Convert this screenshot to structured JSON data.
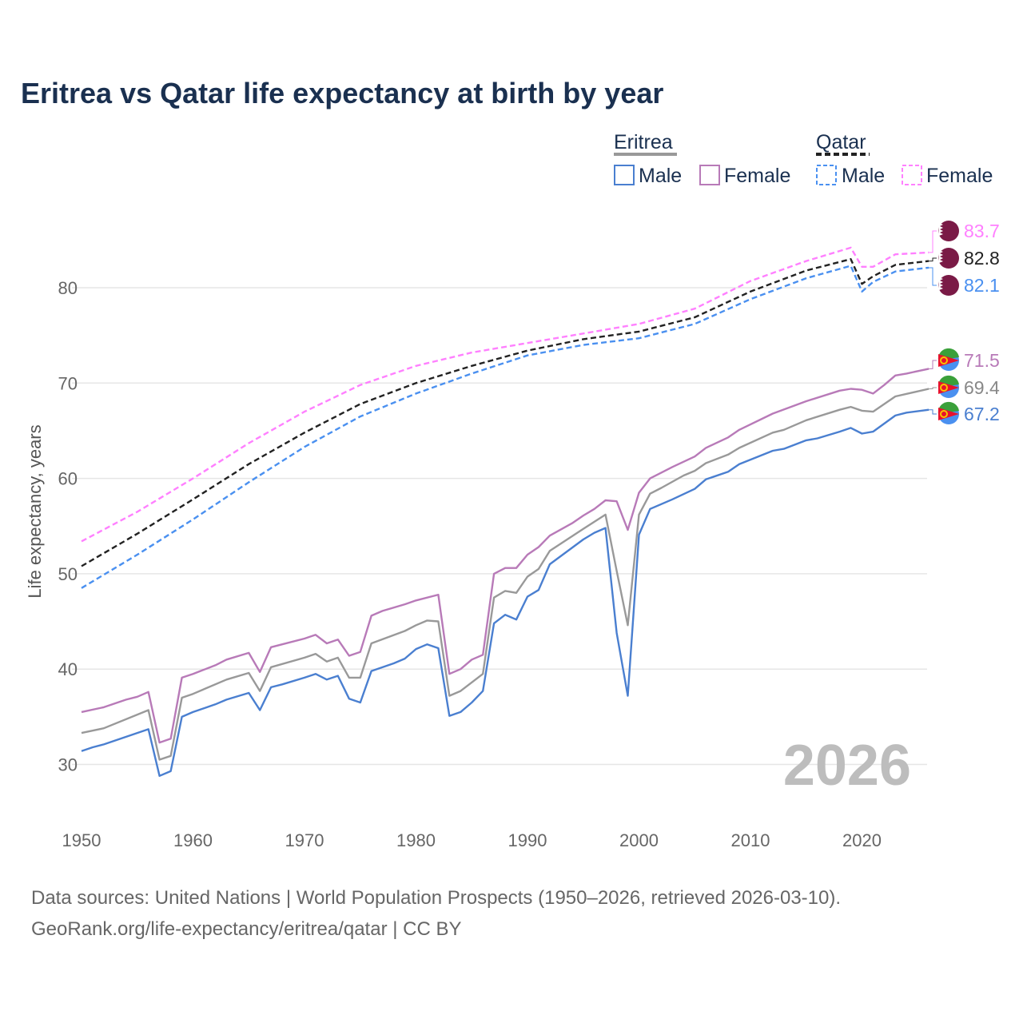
{
  "chart_data": {
    "type": "line",
    "title": "Eritrea vs Qatar life expectancy at birth by year",
    "xlabel": "",
    "ylabel": "Life expectancy, years",
    "xlim": [
      1950,
      2026
    ],
    "ylim": [
      25,
      88
    ],
    "xticks": [
      "1950",
      "1960",
      "1970",
      "1980",
      "1990",
      "2000",
      "2010",
      "2020"
    ],
    "yticks": [
      "30",
      "40",
      "50",
      "60",
      "70",
      "80"
    ],
    "grid": true,
    "year_watermark": "2026",
    "legend": {
      "placement": "top-right",
      "groups": [
        {
          "country": "Eritrea",
          "items": [
            "Male",
            "Female"
          ]
        },
        {
          "country": "Qatar",
          "items": [
            "Male",
            "Female"
          ]
        }
      ]
    },
    "series": [
      {
        "name": "Qatar Female",
        "country": "Qatar",
        "color": "#ff80ff",
        "dashed": true,
        "end_label": "83.7",
        "points": [
          [
            1950,
            53.4
          ],
          [
            1955,
            56.5
          ],
          [
            1960,
            60.0
          ],
          [
            1965,
            63.7
          ],
          [
            1970,
            67.0
          ],
          [
            1975,
            69.8
          ],
          [
            1980,
            71.8
          ],
          [
            1985,
            73.2
          ],
          [
            1990,
            74.2
          ],
          [
            1995,
            75.2
          ],
          [
            2000,
            76.2
          ],
          [
            2005,
            77.8
          ],
          [
            2010,
            80.7
          ],
          [
            2015,
            82.8
          ],
          [
            2019,
            84.2
          ],
          [
            2020,
            82.2
          ],
          [
            2021,
            82.2
          ],
          [
            2023,
            83.5
          ],
          [
            2026,
            83.7
          ]
        ]
      },
      {
        "name": "Qatar Total",
        "country": "Qatar",
        "color": "#222222",
        "dashed": true,
        "end_label": "82.8",
        "points": [
          [
            1950,
            50.8
          ],
          [
            1955,
            54.2
          ],
          [
            1960,
            57.8
          ],
          [
            1965,
            61.5
          ],
          [
            1970,
            64.8
          ],
          [
            1975,
            67.8
          ],
          [
            1980,
            70.0
          ],
          [
            1985,
            71.8
          ],
          [
            1990,
            73.4
          ],
          [
            1995,
            74.6
          ],
          [
            2000,
            75.4
          ],
          [
            2005,
            76.9
          ],
          [
            2010,
            79.6
          ],
          [
            2015,
            81.8
          ],
          [
            2019,
            83.0
          ],
          [
            2020,
            80.4
          ],
          [
            2021,
            81.2
          ],
          [
            2023,
            82.4
          ],
          [
            2026,
            82.8
          ]
        ]
      },
      {
        "name": "Qatar Male",
        "country": "Qatar",
        "color": "#4a90f0",
        "dashed": true,
        "end_label": "82.1",
        "points": [
          [
            1950,
            48.5
          ],
          [
            1955,
            52.0
          ],
          [
            1960,
            55.7
          ],
          [
            1965,
            59.6
          ],
          [
            1970,
            63.3
          ],
          [
            1975,
            66.5
          ],
          [
            1980,
            68.9
          ],
          [
            1985,
            71.0
          ],
          [
            1990,
            72.9
          ],
          [
            1995,
            74.0
          ],
          [
            2000,
            74.7
          ],
          [
            2005,
            76.2
          ],
          [
            2010,
            78.8
          ],
          [
            2015,
            81.0
          ],
          [
            2019,
            82.3
          ],
          [
            2020,
            79.6
          ],
          [
            2021,
            80.6
          ],
          [
            2023,
            81.7
          ],
          [
            2026,
            82.1
          ]
        ]
      },
      {
        "name": "Eritrea Female",
        "country": "Eritrea",
        "color": "#b87ab8",
        "dashed": false,
        "end_label": "71.5",
        "points": [
          [
            1950,
            35.5
          ],
          [
            1952,
            36.0
          ],
          [
            1954,
            36.8
          ],
          [
            1955,
            37.1
          ],
          [
            1956,
            37.6
          ],
          [
            1957,
            32.3
          ],
          [
            1958,
            32.7
          ],
          [
            1959,
            39.1
          ],
          [
            1960,
            39.5
          ],
          [
            1962,
            40.4
          ],
          [
            1963,
            41.0
          ],
          [
            1965,
            41.7
          ],
          [
            1966,
            39.7
          ],
          [
            1967,
            42.3
          ],
          [
            1968,
            42.6
          ],
          [
            1970,
            43.2
          ],
          [
            1971,
            43.6
          ],
          [
            1972,
            42.7
          ],
          [
            1973,
            43.1
          ],
          [
            1974,
            41.4
          ],
          [
            1975,
            41.8
          ],
          [
            1976,
            45.6
          ],
          [
            1977,
            46.1
          ],
          [
            1979,
            46.8
          ],
          [
            1980,
            47.2
          ],
          [
            1982,
            47.8
          ],
          [
            1983,
            39.5
          ],
          [
            1984,
            40.0
          ],
          [
            1985,
            41.0
          ],
          [
            1986,
            41.5
          ],
          [
            1987,
            50.0
          ],
          [
            1988,
            50.6
          ],
          [
            1989,
            50.6
          ],
          [
            1990,
            52.0
          ],
          [
            1991,
            52.8
          ],
          [
            1992,
            54.0
          ],
          [
            1994,
            55.3
          ],
          [
            1995,
            56.1
          ],
          [
            1996,
            56.8
          ],
          [
            1997,
            57.7
          ],
          [
            1998,
            57.6
          ],
          [
            1999,
            54.6
          ],
          [
            2000,
            58.5
          ],
          [
            2001,
            60.0
          ],
          [
            2002,
            60.6
          ],
          [
            2003,
            61.2
          ],
          [
            2005,
            62.3
          ],
          [
            2006,
            63.2
          ],
          [
            2008,
            64.3
          ],
          [
            2009,
            65.1
          ],
          [
            2012,
            66.8
          ],
          [
            2015,
            68.1
          ],
          [
            2018,
            69.2
          ],
          [
            2019,
            69.4
          ],
          [
            2020,
            69.3
          ],
          [
            2021,
            68.9
          ],
          [
            2022,
            69.8
          ],
          [
            2023,
            70.8
          ],
          [
            2024,
            71.0
          ],
          [
            2026,
            71.5
          ]
        ]
      },
      {
        "name": "Eritrea Total",
        "country": "Eritrea",
        "color": "#999999",
        "dashed": false,
        "end_label": "69.4",
        "points": [
          [
            1950,
            33.3
          ],
          [
            1952,
            33.8
          ],
          [
            1956,
            35.7
          ],
          [
            1957,
            30.5
          ],
          [
            1958,
            30.9
          ],
          [
            1959,
            37.0
          ],
          [
            1960,
            37.4
          ],
          [
            1963,
            38.9
          ],
          [
            1965,
            39.6
          ],
          [
            1966,
            37.7
          ],
          [
            1967,
            40.2
          ],
          [
            1970,
            41.2
          ],
          [
            1971,
            41.6
          ],
          [
            1972,
            40.8
          ],
          [
            1973,
            41.2
          ],
          [
            1974,
            39.1
          ],
          [
            1975,
            39.1
          ],
          [
            1976,
            42.7
          ],
          [
            1979,
            44.0
          ],
          [
            1980,
            44.6
          ],
          [
            1981,
            45.1
          ],
          [
            1982,
            45.0
          ],
          [
            1983,
            37.2
          ],
          [
            1984,
            37.7
          ],
          [
            1986,
            39.5
          ],
          [
            1987,
            47.5
          ],
          [
            1988,
            48.2
          ],
          [
            1989,
            48.0
          ],
          [
            1990,
            49.7
          ],
          [
            1991,
            50.5
          ],
          [
            1992,
            52.4
          ],
          [
            1995,
            54.7
          ],
          [
            1997,
            56.2
          ],
          [
            1998,
            50.3
          ],
          [
            1999,
            44.6
          ],
          [
            2000,
            56.2
          ],
          [
            2001,
            58.4
          ],
          [
            2002,
            59.0
          ],
          [
            2004,
            60.3
          ],
          [
            2005,
            60.8
          ],
          [
            2006,
            61.6
          ],
          [
            2008,
            62.5
          ],
          [
            2009,
            63.2
          ],
          [
            2012,
            64.8
          ],
          [
            2013,
            65.1
          ],
          [
            2015,
            66.1
          ],
          [
            2018,
            67.2
          ],
          [
            2019,
            67.5
          ],
          [
            2020,
            67.1
          ],
          [
            2021,
            67.0
          ],
          [
            2023,
            68.6
          ],
          [
            2026,
            69.4
          ]
        ]
      },
      {
        "name": "Eritrea Male",
        "country": "Eritrea",
        "color": "#4a7fd0",
        "dashed": false,
        "end_label": "67.2",
        "points": [
          [
            1950,
            31.4
          ],
          [
            1951,
            31.8
          ],
          [
            1952,
            32.1
          ],
          [
            1956,
            33.7
          ],
          [
            1957,
            28.8
          ],
          [
            1958,
            29.3
          ],
          [
            1959,
            35.0
          ],
          [
            1960,
            35.5
          ],
          [
            1962,
            36.3
          ],
          [
            1963,
            36.8
          ],
          [
            1965,
            37.5
          ],
          [
            1966,
            35.7
          ],
          [
            1967,
            38.1
          ],
          [
            1968,
            38.4
          ],
          [
            1970,
            39.1
          ],
          [
            1971,
            39.5
          ],
          [
            1972,
            38.9
          ],
          [
            1973,
            39.3
          ],
          [
            1974,
            36.9
          ],
          [
            1975,
            36.5
          ],
          [
            1976,
            39.8
          ],
          [
            1978,
            40.6
          ],
          [
            1979,
            41.1
          ],
          [
            1980,
            42.1
          ],
          [
            1981,
            42.6
          ],
          [
            1982,
            42.2
          ],
          [
            1983,
            35.1
          ],
          [
            1984,
            35.5
          ],
          [
            1985,
            36.5
          ],
          [
            1986,
            37.7
          ],
          [
            1987,
            44.8
          ],
          [
            1988,
            45.7
          ],
          [
            1989,
            45.2
          ],
          [
            1990,
            47.6
          ],
          [
            1991,
            48.3
          ],
          [
            1992,
            51.0
          ],
          [
            1995,
            53.6
          ],
          [
            1996,
            54.3
          ],
          [
            1997,
            54.8
          ],
          [
            1998,
            43.8
          ],
          [
            1999,
            37.2
          ],
          [
            2000,
            54.1
          ],
          [
            2001,
            56.8
          ],
          [
            2003,
            57.8
          ],
          [
            2005,
            58.9
          ],
          [
            2006,
            59.9
          ],
          [
            2008,
            60.7
          ],
          [
            2009,
            61.5
          ],
          [
            2012,
            62.9
          ],
          [
            2013,
            63.1
          ],
          [
            2015,
            64.0
          ],
          [
            2016,
            64.2
          ],
          [
            2018,
            64.9
          ],
          [
            2019,
            65.3
          ],
          [
            2020,
            64.7
          ],
          [
            2021,
            64.9
          ],
          [
            2023,
            66.6
          ],
          [
            2024,
            66.9
          ],
          [
            2026,
            67.2
          ]
        ]
      }
    ]
  },
  "footer": {
    "line1": "Data sources: United Nations | World Population Prospects (1950–2026, retrieved 2026-03-10).",
    "line2": "GeoRank.org/life-expectancy/eritrea/qatar | CC BY"
  }
}
